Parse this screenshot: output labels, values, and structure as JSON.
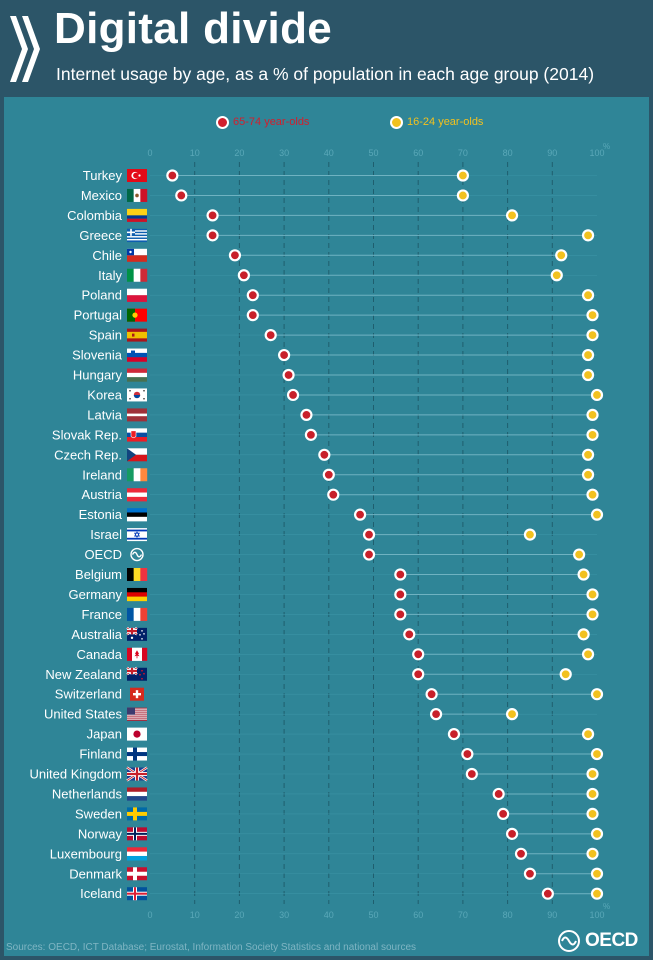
{
  "header": {
    "title": "Digital divide",
    "subtitle": "Internet usage by age, as a % of population in each age group (2014)"
  },
  "legend": [
    {
      "label": "65-74 year-olds",
      "color": "#d0202e"
    },
    {
      "label": "16-24 year-olds",
      "color": "#f2c11f"
    }
  ],
  "colors": {
    "background_header": "#2c5568",
    "background_panel": "#2f8597",
    "older_series": "#c8202a",
    "younger_series": "#f2c11f",
    "axis_text": "#5aa8b8"
  },
  "chart_data": {
    "type": "scatter",
    "title": "Digital divide",
    "subtitle": "Internet usage by age, as a % of population in each age group (2014)",
    "xlabel": "%",
    "xlim": [
      0,
      100
    ],
    "xticks": [
      "0",
      "10",
      "20",
      "30",
      "40",
      "50",
      "60",
      "70",
      "80",
      "90",
      "100"
    ],
    "categories": [
      "Turkey",
      "Mexico",
      "Colombia",
      "Greece",
      "Chile",
      "Italy",
      "Poland",
      "Portugal",
      "Spain",
      "Slovenia",
      "Hungary",
      "Korea",
      "Latvia",
      "Slovak Rep.",
      "Czech Rep.",
      "Ireland",
      "Austria",
      "Estonia",
      "Israel",
      "OECD",
      "Belgium",
      "Germany",
      "France",
      "Australia",
      "Canada",
      "New Zealand",
      "Switzerland",
      "United States",
      "Japan",
      "Finland",
      "United Kingdom",
      "Netherlands",
      "Sweden",
      "Norway",
      "Luxembourg",
      "Denmark",
      "Iceland"
    ],
    "flags": [
      "turkey-flag-icon",
      "mexico-flag-icon",
      "colombia-flag-icon",
      "greece-flag-icon",
      "chile-flag-icon",
      "italy-flag-icon",
      "poland-flag-icon",
      "portugal-flag-icon",
      "spain-flag-icon",
      "slovenia-flag-icon",
      "hungary-flag-icon",
      "korea-flag-icon",
      "latvia-flag-icon",
      "slovakia-flag-icon",
      "czech-flag-icon",
      "ireland-flag-icon",
      "austria-flag-icon",
      "estonia-flag-icon",
      "israel-flag-icon",
      "oecd-logo-icon",
      "belgium-flag-icon",
      "germany-flag-icon",
      "france-flag-icon",
      "australia-flag-icon",
      "canada-flag-icon",
      "new-zealand-flag-icon",
      "switzerland-flag-icon",
      "usa-flag-icon",
      "japan-flag-icon",
      "finland-flag-icon",
      "uk-flag-icon",
      "netherlands-flag-icon",
      "sweden-flag-icon",
      "norway-flag-icon",
      "luxembourg-flag-icon",
      "denmark-flag-icon",
      "iceland-flag-icon"
    ],
    "series": [
      {
        "name": "65-74 year-olds",
        "values": [
          5,
          7,
          14,
          14,
          19,
          21,
          23,
          23,
          27,
          30,
          31,
          32,
          35,
          36,
          39,
          40,
          41,
          47,
          49,
          49,
          56,
          56,
          56,
          58,
          60,
          60,
          63,
          64,
          68,
          71,
          72,
          78,
          79,
          81,
          83,
          85,
          89
        ]
      },
      {
        "name": "16-24 year-olds",
        "values": [
          70,
          70,
          81,
          98,
          92,
          91,
          98,
          99,
          99,
          98,
          98,
          100,
          99,
          99,
          98,
          98,
          99,
          100,
          85,
          96,
          97,
          99,
          99,
          97,
          98,
          93,
          100,
          81,
          98,
          100,
          99,
          99,
          99,
          100,
          99,
          100,
          100
        ]
      }
    ],
    "grid": true,
    "legend_position": "top"
  },
  "footer": {
    "source": "Sources: OECD, ICT Database; Eurostat, Information Society Statistics and national sources",
    "logo_text": "OECD"
  }
}
